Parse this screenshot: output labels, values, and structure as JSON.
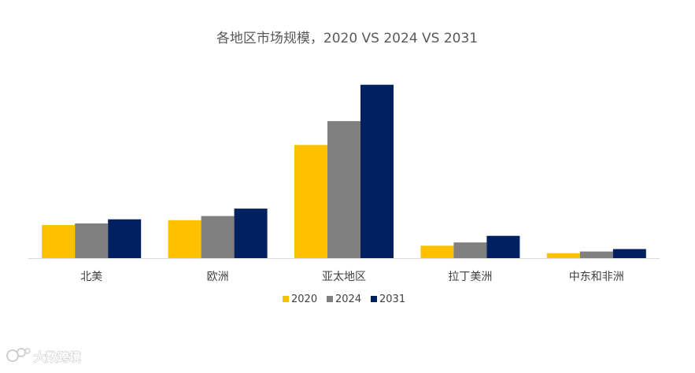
{
  "watermark": {
    "text": "大数跨境"
  },
  "chart_data": {
    "type": "bar",
    "title": "各地区市场规模，2020 VS 2024 VS 2031",
    "xlabel": "",
    "ylabel": "",
    "categories": [
      "北美",
      "欧洲",
      "亚太地区",
      "拉丁美洲",
      "中东和非洲"
    ],
    "series": [
      {
        "name": "2020",
        "color": "#FFC000",
        "values": [
          40,
          46,
          137,
          15,
          6
        ]
      },
      {
        "name": "2024",
        "color": "#808080",
        "values": [
          42,
          51,
          166,
          19,
          8
        ]
      },
      {
        "name": "2031",
        "color": "#002060",
        "values": [
          47,
          60,
          210,
          27,
          11
        ]
      }
    ],
    "ylim": [
      0,
      225
    ],
    "y_axis_shown": false,
    "grid": false,
    "legend_position": "bottom"
  }
}
